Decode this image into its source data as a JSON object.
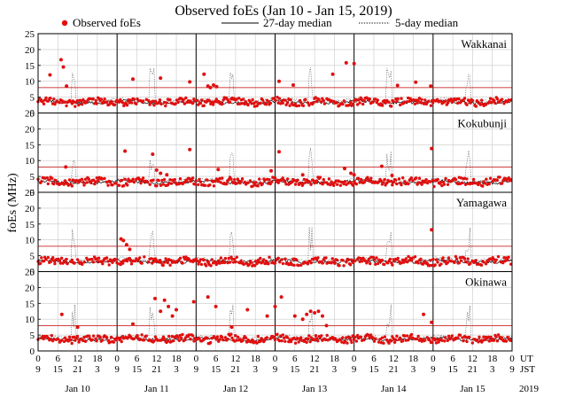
{
  "chart_data": {
    "type": "scatter",
    "title": "Observed foEs (Jan 10 - Jan 15, 2019)",
    "ylabel": "foEs (MHz)",
    "ylim": [
      0,
      25
    ],
    "yticks": [
      0,
      5,
      10,
      15,
      20,
      25
    ],
    "year_label": "2019",
    "threshold_mhz": 8,
    "threshold_color": "#c00000",
    "point_color": "#e01010",
    "legend": {
      "observed": "Observed foEs",
      "median27": "27-day median",
      "median5": "5-day median"
    },
    "time_axis": {
      "ut_label": "UT",
      "jst_label": "JST",
      "ut_hours": [
        "0",
        "6",
        "12",
        "18"
      ],
      "jst_hours": [
        "9",
        "15",
        "21",
        "3"
      ],
      "final_ut": "0",
      "final_jst": "9",
      "days": [
        "Jan 10",
        "Jan 11",
        "Jan 12",
        "Jan 13",
        "Jan 14",
        "Jan 15"
      ]
    },
    "stations": [
      {
        "name": "Wakkanai",
        "base": 3.5,
        "spikes": [
          [
            0.15,
            12
          ],
          [
            0.29,
            16.8
          ],
          [
            0.32,
            14.5
          ],
          [
            0.36,
            8.5
          ],
          [
            1.2,
            10.7
          ],
          [
            1.55,
            11.0
          ],
          [
            1.92,
            9.8
          ],
          [
            2.1,
            12.2
          ],
          [
            2.15,
            8.5
          ],
          [
            2.18,
            8.0
          ],
          [
            2.22,
            8.8
          ],
          [
            2.26,
            8.3
          ],
          [
            3.05,
            10.0
          ],
          [
            3.23,
            8.8
          ],
          [
            3.73,
            12.2
          ],
          [
            3.9,
            15.8
          ],
          [
            4.0,
            15.6
          ],
          [
            4.55,
            8.7
          ],
          [
            4.78,
            9.7
          ],
          [
            4.97,
            8.5
          ]
        ]
      },
      {
        "name": "Kokubunji",
        "base": 3.3,
        "spikes": [
          [
            0.35,
            8.0
          ],
          [
            1.1,
            13.0
          ],
          [
            1.45,
            12.0
          ],
          [
            1.5,
            7.0
          ],
          [
            1.55,
            6.0
          ],
          [
            1.63,
            5.5
          ],
          [
            1.92,
            13.5
          ],
          [
            2.28,
            7.2
          ],
          [
            2.95,
            6.8
          ],
          [
            3.05,
            12.8
          ],
          [
            3.35,
            5.5
          ],
          [
            3.88,
            7.5
          ],
          [
            3.96,
            6.0
          ],
          [
            4.0,
            5.5
          ],
          [
            4.35,
            8.2
          ],
          [
            4.48,
            5.3
          ],
          [
            4.98,
            13.8
          ]
        ]
      },
      {
        "name": "Yamagawa",
        "base": 3.3,
        "spikes": [
          [
            1.05,
            10.3
          ],
          [
            1.08,
            9.8
          ],
          [
            1.12,
            8.5
          ],
          [
            1.16,
            7.0
          ],
          [
            4.98,
            13.2
          ]
        ]
      },
      {
        "name": "Okinawa",
        "base": 3.8,
        "spikes": [
          [
            0.3,
            11.5
          ],
          [
            0.5,
            7.5
          ],
          [
            1.2,
            8.5
          ],
          [
            1.48,
            16.5
          ],
          [
            1.55,
            12.5
          ],
          [
            1.6,
            16.0
          ],
          [
            1.65,
            14.0
          ],
          [
            1.7,
            11.0
          ],
          [
            1.75,
            13.0
          ],
          [
            1.97,
            15.5
          ],
          [
            2.15,
            17.0
          ],
          [
            2.25,
            14.0
          ],
          [
            2.45,
            7.5
          ],
          [
            2.65,
            13.0
          ],
          [
            2.9,
            11.0
          ],
          [
            3.0,
            14.0
          ],
          [
            3.08,
            17.0
          ],
          [
            3.25,
            11.0
          ],
          [
            3.35,
            10.0
          ],
          [
            3.4,
            11.5
          ],
          [
            3.45,
            12.5
          ],
          [
            3.5,
            12.0
          ],
          [
            3.55,
            12.5
          ],
          [
            3.6,
            11.0
          ],
          [
            3.65,
            8.0
          ],
          [
            4.88,
            11.5
          ],
          [
            4.98,
            9.0
          ]
        ]
      }
    ]
  }
}
